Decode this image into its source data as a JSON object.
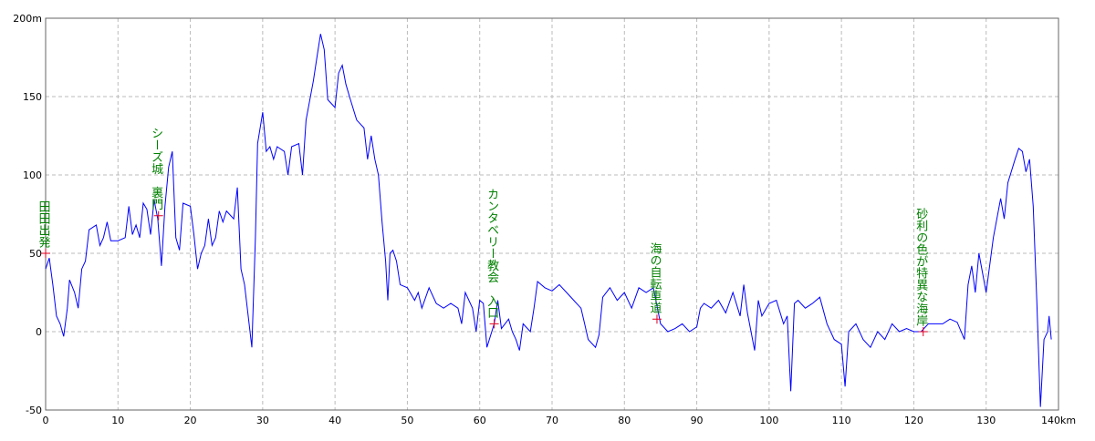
{
  "chart_data": {
    "type": "line",
    "x": [
      0,
      0.5,
      1,
      1.5,
      2,
      2.5,
      3,
      3.3,
      4,
      4.5,
      5,
      5.5,
      6,
      7,
      7.5,
      8,
      8.5,
      9,
      10,
      11,
      11.5,
      12,
      12.5,
      13,
      13.5,
      14,
      14.5,
      15,
      15.5,
      16,
      16.5,
      17,
      17.5,
      18,
      18.5,
      19,
      20,
      20.5,
      21,
      21.5,
      22,
      22.5,
      23,
      23.5,
      24,
      24.5,
      25,
      26,
      26.5,
      27,
      27.5,
      28,
      28.5,
      29,
      29.3,
      30,
      30.5,
      31,
      31.5,
      32,
      33,
      33.5,
      34,
      35,
      35.5,
      36,
      37,
      37.5,
      38,
      38.5,
      39,
      40,
      40.5,
      41,
      41.5,
      42,
      43,
      44,
      44.5,
      45,
      45.5,
      46,
      46.5,
      47,
      47.3,
      47.6,
      48,
      48.5,
      49,
      50,
      51,
      51.5,
      52,
      53,
      54,
      55,
      56,
      57,
      57.5,
      58,
      59,
      59.5,
      60,
      60.5,
      61,
      62,
      62.5,
      63,
      64,
      64.5,
      65,
      65.5,
      66,
      67,
      67.5,
      68,
      69,
      70,
      71,
      72,
      73,
      74,
      74.5,
      75,
      76,
      76.5,
      77,
      78,
      79,
      80,
      81,
      82,
      83,
      84,
      85,
      86,
      87,
      88,
      89,
      90,
      90.5,
      91,
      92,
      93,
      94,
      95,
      96,
      96.5,
      97,
      98,
      98.5,
      99,
      100,
      101,
      102,
      102.5,
      103,
      103.5,
      104,
      105,
      106,
      107,
      108,
      109,
      110,
      110.5,
      111,
      112,
      113,
      114,
      115,
      116,
      117,
      118,
      119,
      120,
      121,
      122,
      123,
      124,
      125,
      126,
      127,
      127.5,
      128,
      128.5,
      129,
      130,
      131,
      132,
      132.5,
      133,
      134,
      134.5,
      135,
      135.5,
      136,
      136.5,
      137,
      137.5,
      138,
      138.5,
      138.7,
      139
    ],
    "series": [
      {
        "color": "#0000ff",
        "values": [
          40,
          47,
          30,
          10,
          5,
          -3,
          15,
          33,
          25,
          15,
          40,
          45,
          65,
          68,
          55,
          60,
          70,
          58,
          58,
          60,
          80,
          62,
          68,
          60,
          82,
          78,
          62,
          84,
          72,
          42,
          80,
          105,
          115,
          60,
          52,
          82,
          80,
          62,
          40,
          50,
          55,
          72,
          55,
          60,
          77,
          70,
          77,
          72,
          92,
          40,
          30,
          10,
          -10,
          60,
          120,
          140,
          115,
          118,
          110,
          118,
          115,
          100,
          118,
          120,
          100,
          135,
          160,
          175,
          190,
          180,
          148,
          143,
          165,
          170,
          158,
          150,
          135,
          130,
          110,
          125,
          110,
          100,
          70,
          45,
          20,
          50,
          52,
          45,
          30,
          28,
          20,
          25,
          15,
          28,
          18,
          15,
          18,
          15,
          5,
          25,
          15,
          0,
          20,
          18,
          -10,
          5,
          20,
          2,
          8,
          0,
          -5,
          -12,
          5,
          0,
          15,
          32,
          28,
          26,
          30,
          25,
          20,
          15,
          5,
          -5,
          -10,
          -2,
          22,
          28,
          20,
          25,
          15,
          28,
          25,
          28,
          5,
          0,
          2,
          5,
          0,
          3,
          15,
          18,
          15,
          20,
          12,
          25,
          10,
          30,
          12,
          -12,
          20,
          10,
          18,
          20,
          5,
          10,
          -38,
          18,
          20,
          15,
          18,
          22,
          5,
          -5,
          -8,
          -35,
          0,
          5,
          -5,
          -10,
          0,
          -5,
          5,
          0,
          2,
          0,
          0,
          5,
          5,
          5,
          8,
          6,
          -5,
          30,
          42,
          25,
          50,
          25,
          60,
          85,
          72,
          95,
          110,
          117,
          115,
          102,
          110,
          80,
          20,
          -48,
          -5,
          0,
          10,
          -5
        ]
      }
    ],
    "annotations": [
      {
        "text": "田田出発",
        "x": 0,
        "y": 50
      },
      {
        "text": "シーズ城　裏門",
        "x": 15.6,
        "y": 74
      },
      {
        "text": "カンタベリー教会　入口",
        "x": 62,
        "y": 5
      },
      {
        "text": "海の自転車道",
        "x": 84.5,
        "y": 8
      },
      {
        "text": "砂利の色が特異な海岸",
        "x": 121.3,
        "y": 0
      }
    ],
    "xlim": [
      0,
      140
    ],
    "xticks": [
      0,
      10,
      20,
      30,
      40,
      50,
      60,
      70,
      80,
      90,
      100,
      110,
      120,
      130,
      {
        "value": 140,
        "label": "140km"
      }
    ],
    "ylim": [
      -50,
      200
    ],
    "yticks": [
      -50,
      0,
      50,
      100,
      150,
      {
        "value": 200,
        "label": "200m"
      }
    ],
    "grid": true
  }
}
